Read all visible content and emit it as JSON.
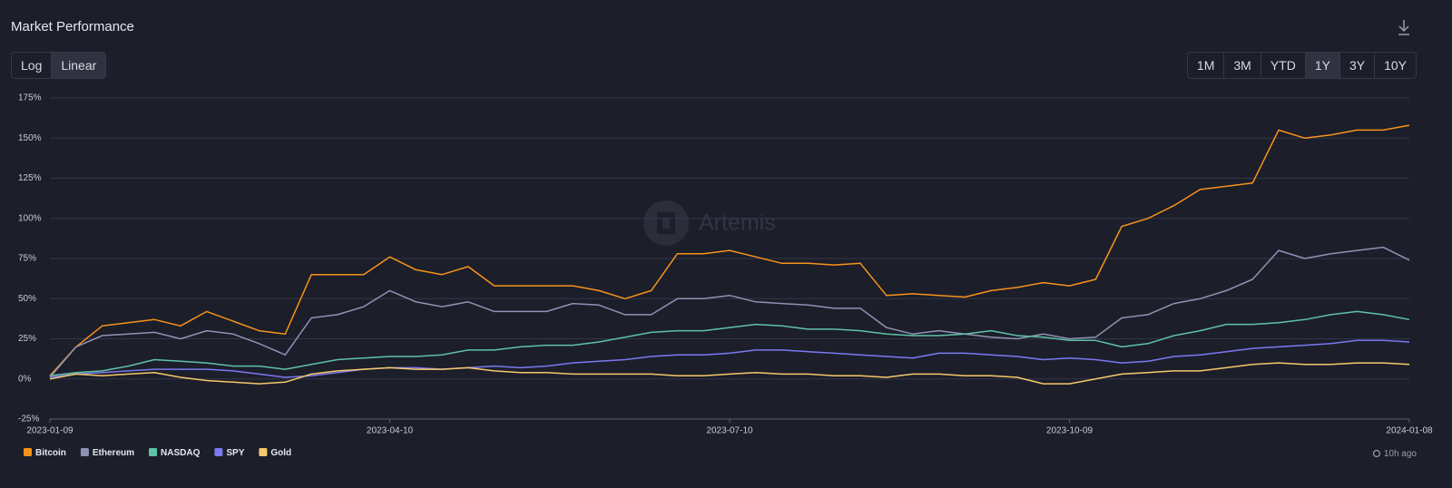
{
  "chart_data": {
    "type": "line",
    "title": "Market Performance",
    "scale_options": [
      "Log",
      "Linear"
    ],
    "active_scale": 1,
    "range_options": [
      "1M",
      "3M",
      "YTD",
      "1Y",
      "3Y",
      "10Y"
    ],
    "active_range": 3,
    "watermark": "Artemis",
    "updated": "10h ago",
    "x": [
      "2023-01-09",
      "2023-01-16",
      "2023-01-23",
      "2023-01-30",
      "2023-02-06",
      "2023-02-13",
      "2023-02-20",
      "2023-02-27",
      "2023-03-06",
      "2023-03-13",
      "2023-03-20",
      "2023-03-27",
      "2023-04-03",
      "2023-04-10",
      "2023-04-17",
      "2023-04-24",
      "2023-05-01",
      "2023-05-08",
      "2023-05-15",
      "2023-05-22",
      "2023-05-29",
      "2023-06-05",
      "2023-06-12",
      "2023-06-19",
      "2023-06-26",
      "2023-07-03",
      "2023-07-10",
      "2023-07-17",
      "2023-07-24",
      "2023-07-31",
      "2023-08-07",
      "2023-08-14",
      "2023-08-21",
      "2023-08-28",
      "2023-09-04",
      "2023-09-11",
      "2023-09-18",
      "2023-09-25",
      "2023-10-02",
      "2023-10-09",
      "2023-10-16",
      "2023-10-23",
      "2023-10-30",
      "2023-11-06",
      "2023-11-13",
      "2023-11-20",
      "2023-11-27",
      "2023-12-04",
      "2023-12-11",
      "2023-12-18",
      "2023-12-25",
      "2024-01-01",
      "2024-01-08"
    ],
    "xticks": [
      "2023-01-09",
      "2023-04-10",
      "2023-07-10",
      "2023-10-09",
      "2024-01-08"
    ],
    "series": [
      {
        "name": "Bitcoin",
        "color": "#f7931a",
        "values": [
          2,
          20,
          33,
          35,
          37,
          33,
          42,
          36,
          30,
          28,
          65,
          65,
          65,
          76,
          68,
          65,
          70,
          58,
          58,
          58,
          58,
          55,
          50,
          55,
          78,
          78,
          80,
          76,
          72,
          72,
          71,
          72,
          52,
          53,
          52,
          51,
          55,
          57,
          60,
          58,
          62,
          95,
          100,
          108,
          118,
          120,
          122,
          155,
          150,
          152,
          155,
          155,
          158
        ]
      },
      {
        "name": "Ethereum",
        "color": "#8e93b3",
        "values": [
          1,
          20,
          27,
          28,
          29,
          25,
          30,
          28,
          22,
          15,
          38,
          40,
          45,
          55,
          48,
          45,
          48,
          42,
          42,
          42,
          47,
          46,
          40,
          40,
          50,
          50,
          52,
          48,
          47,
          46,
          44,
          44,
          32,
          28,
          30,
          28,
          26,
          25,
          28,
          25,
          26,
          38,
          40,
          47,
          50,
          55,
          62,
          80,
          75,
          78,
          80,
          82,
          74
        ]
      },
      {
        "name": "NASDAQ",
        "color": "#5ec2a8",
        "values": [
          2,
          4,
          5,
          8,
          12,
          11,
          10,
          8,
          8,
          6,
          9,
          12,
          13,
          14,
          14,
          15,
          18,
          18,
          20,
          21,
          21,
          23,
          26,
          29,
          30,
          30,
          32,
          34,
          33,
          31,
          31,
          30,
          28,
          27,
          27,
          28,
          30,
          27,
          26,
          24,
          24,
          20,
          22,
          27,
          30,
          34,
          34,
          35,
          37,
          40,
          42,
          40,
          37
        ]
      },
      {
        "name": "SPY",
        "color": "#7b78f0",
        "values": [
          1,
          3,
          4,
          5,
          6,
          6,
          6,
          5,
          3,
          1,
          2,
          4,
          6,
          7,
          7,
          6,
          7,
          8,
          7,
          8,
          10,
          11,
          12,
          14,
          15,
          15,
          16,
          18,
          18,
          17,
          16,
          15,
          14,
          13,
          16,
          16,
          15,
          14,
          12,
          13,
          12,
          10,
          11,
          14,
          15,
          17,
          19,
          20,
          21,
          22,
          24,
          24,
          23
        ]
      },
      {
        "name": "Gold",
        "color": "#f5c96a",
        "values": [
          0,
          3,
          2,
          3,
          4,
          1,
          -1,
          -2,
          -3,
          -2,
          3,
          5,
          6,
          7,
          6,
          6,
          7,
          5,
          4,
          4,
          3,
          3,
          3,
          3,
          2,
          2,
          3,
          4,
          3,
          3,
          2,
          2,
          1,
          3,
          3,
          2,
          2,
          1,
          -3,
          -3,
          0,
          3,
          4,
          5,
          5,
          7,
          9,
          10,
          9,
          9,
          10,
          10,
          9
        ]
      }
    ],
    "ylim": [
      -25,
      175
    ],
    "yticks": [
      {
        "value": -25,
        "label": "-25%"
      },
      {
        "value": 0,
        "label": "0%"
      },
      {
        "value": 25,
        "label": "25%"
      },
      {
        "value": 50,
        "label": "50%"
      },
      {
        "value": 75,
        "label": "75%"
      },
      {
        "value": 100,
        "label": "100%"
      },
      {
        "value": 125,
        "label": "125%"
      },
      {
        "value": 150,
        "label": "150%"
      },
      {
        "value": 175,
        "label": "175%"
      }
    ],
    "grid": true
  }
}
